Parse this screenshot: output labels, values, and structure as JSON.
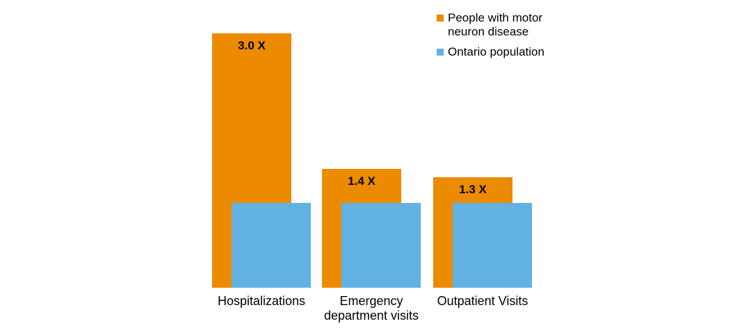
{
  "chart_data": {
    "type": "bar",
    "title": "",
    "categories": [
      "Hospitalizations",
      "Emergency department visits",
      "Outpatient Visits"
    ],
    "series": [
      {
        "name": "People with motor neuron disease",
        "color": "#ED8B00",
        "values": [
          3.0,
          1.4,
          1.3
        ],
        "data_labels": [
          "3.0 X",
          "1.4 X",
          "1.3 X"
        ]
      },
      {
        "name": "Ontario population",
        "color": "#61B1E3",
        "values": [
          1.0,
          1.0,
          1.0
        ],
        "data_labels": [
          "",
          "",
          ""
        ]
      }
    ],
    "ylim": [
      0,
      3.0
    ],
    "baseline_unit": 1.0,
    "grid": false,
    "axes_visible": false,
    "legend_position": "top-right",
    "background_color": "#ffffff",
    "text_color": "#000000"
  }
}
